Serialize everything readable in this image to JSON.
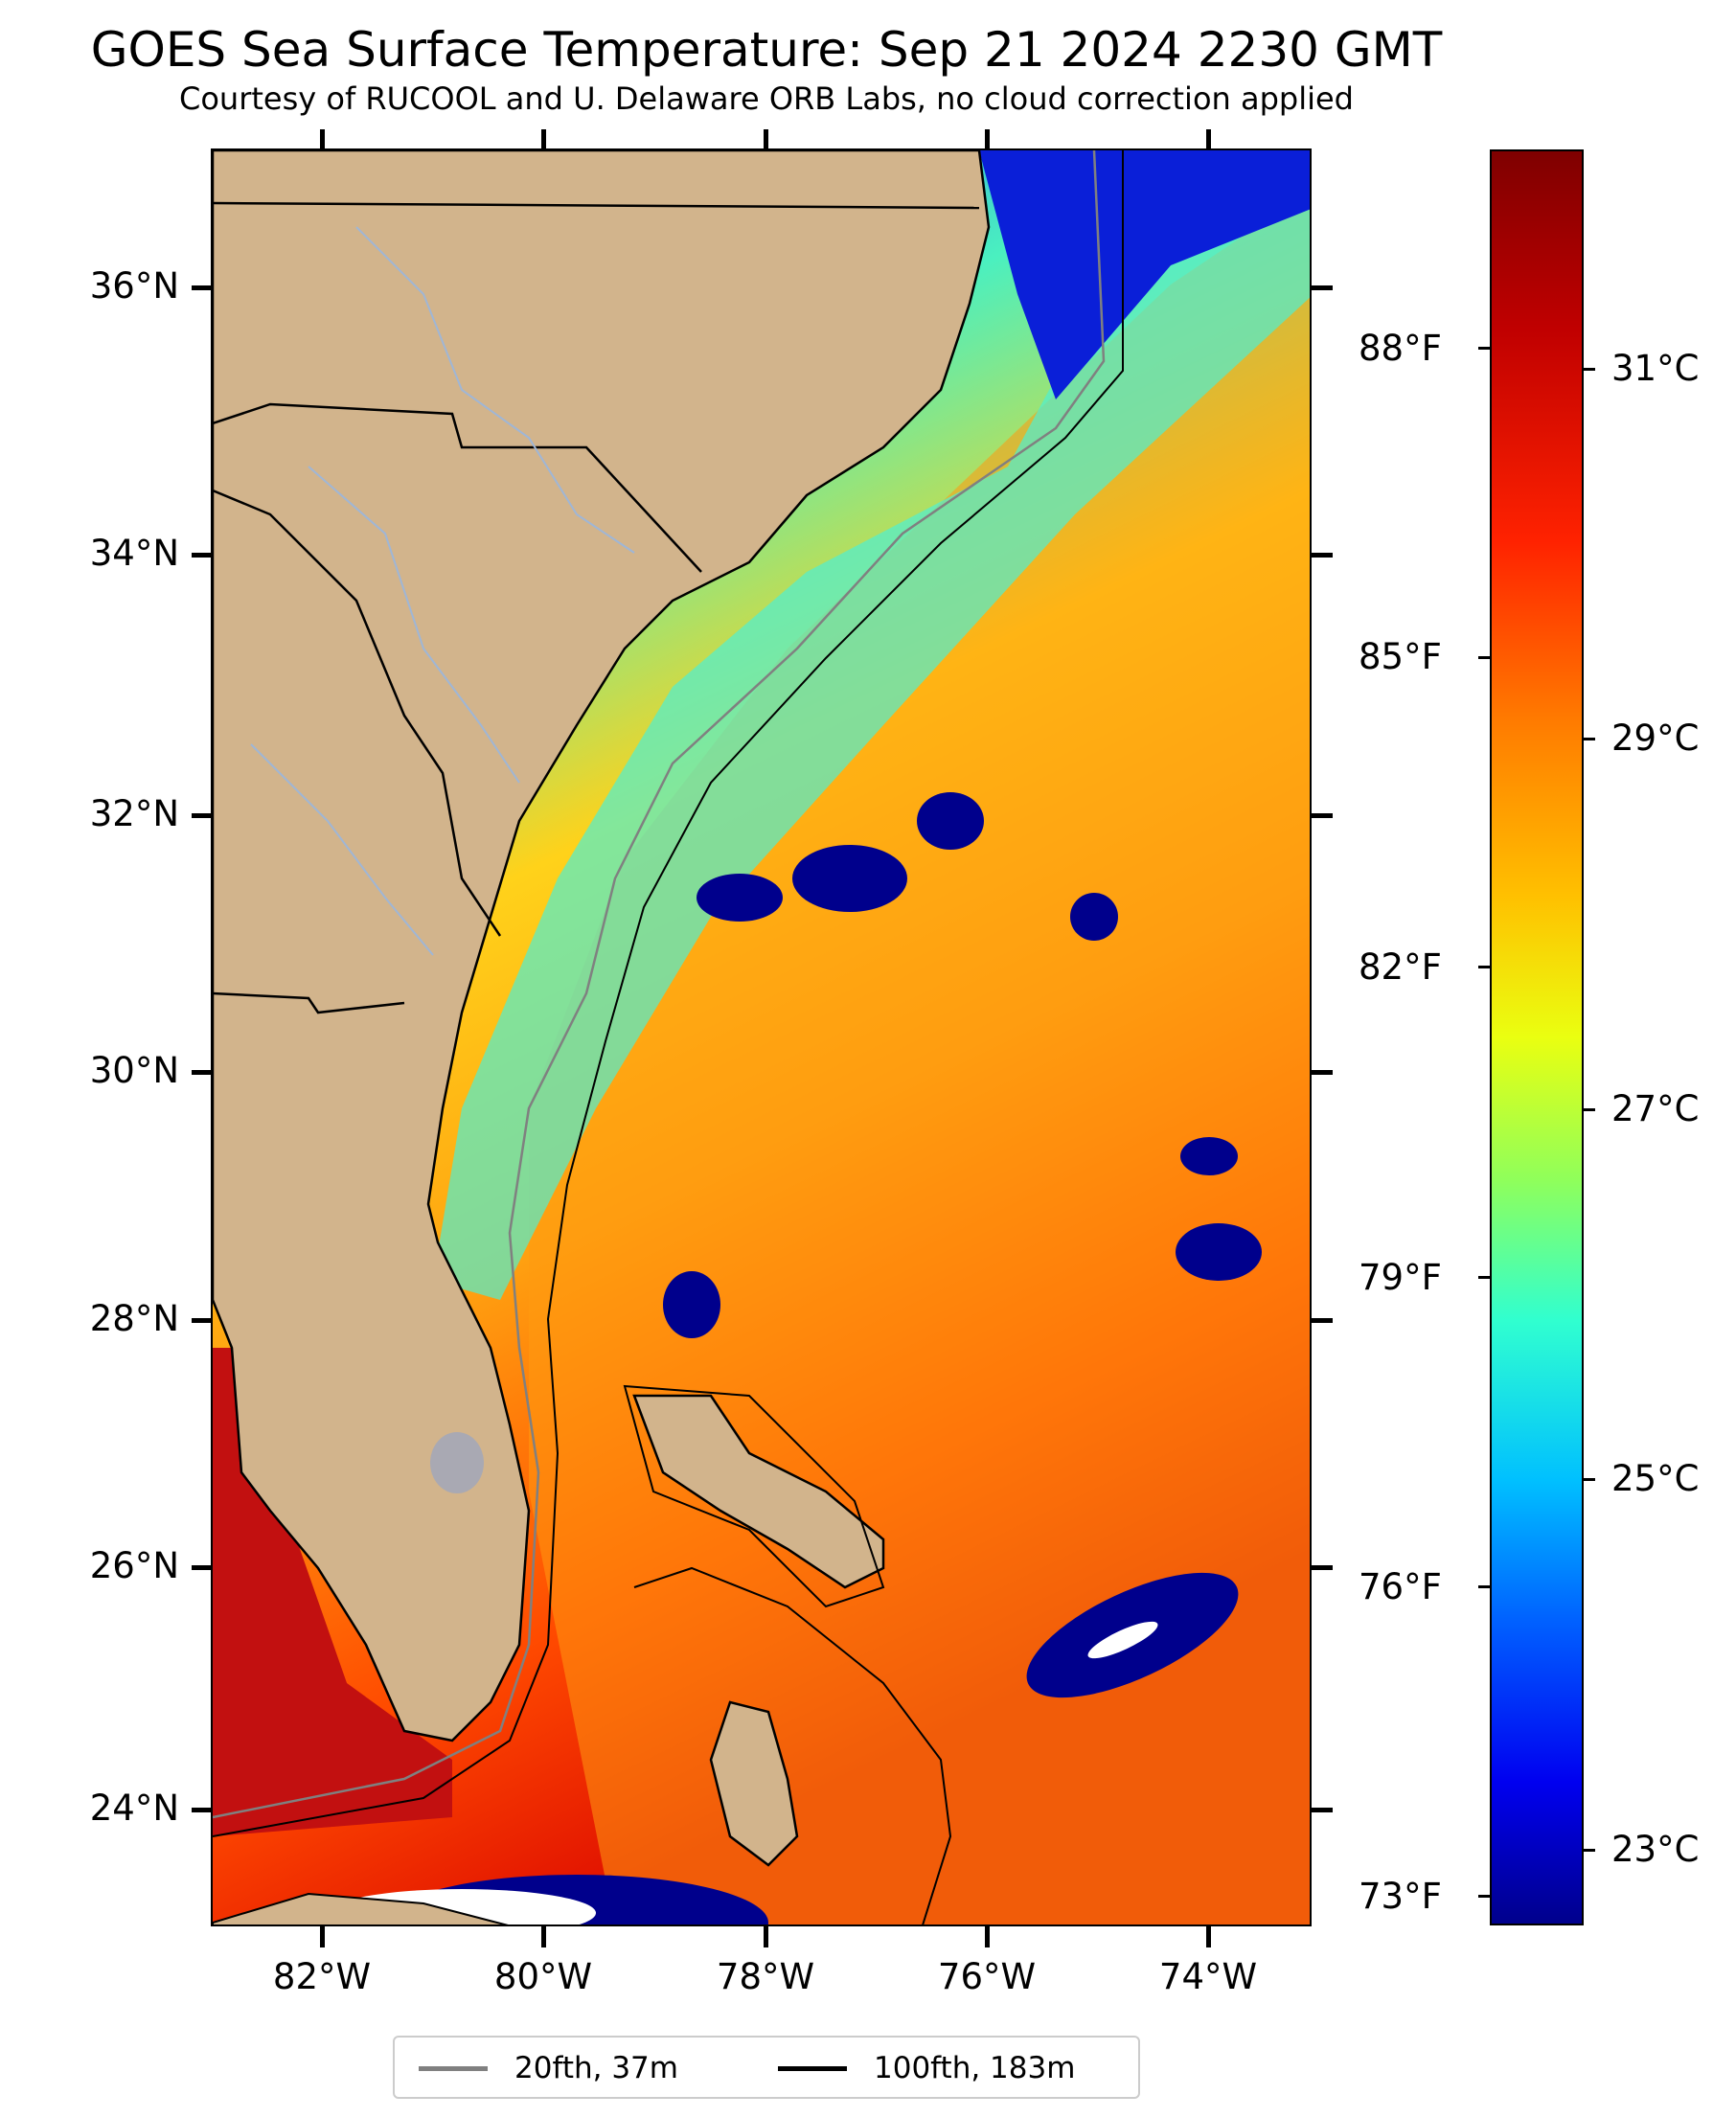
{
  "header": {
    "title": "GOES Sea Surface Temperature: Sep 21 2024 2230 GMT",
    "subtitle": "Courtesy of RUCOOL and U. Delaware ORB Labs, no cloud correction applied"
  },
  "map": {
    "lat_labels": [
      "36°N",
      "34°N",
      "32°N",
      "30°N",
      "28°N",
      "26°N",
      "24°N"
    ],
    "lon_labels": [
      "82°W",
      "80°W",
      "78°W",
      "76°W",
      "74°W"
    ],
    "colors": {
      "land": "#d2b48c",
      "state_borders": "#000000",
      "rivers": "#9fb6d6",
      "cloud": "#ffffff",
      "no_data_cold": "#00008c"
    }
  },
  "colorbar": {
    "celsius_labels": [
      "31°C",
      "29°C",
      "27°C",
      "25°C",
      "23°C"
    ],
    "fahrenheit_labels": [
      "88°F",
      "85°F",
      "82°F",
      "79°F",
      "76°F",
      "73°F"
    ],
    "colormap": "jet"
  },
  "legend": {
    "items": [
      {
        "label": "20fth, 37m",
        "color": "#808080"
      },
      {
        "label": "100fth, 183m",
        "color": "#000000"
      }
    ]
  }
}
